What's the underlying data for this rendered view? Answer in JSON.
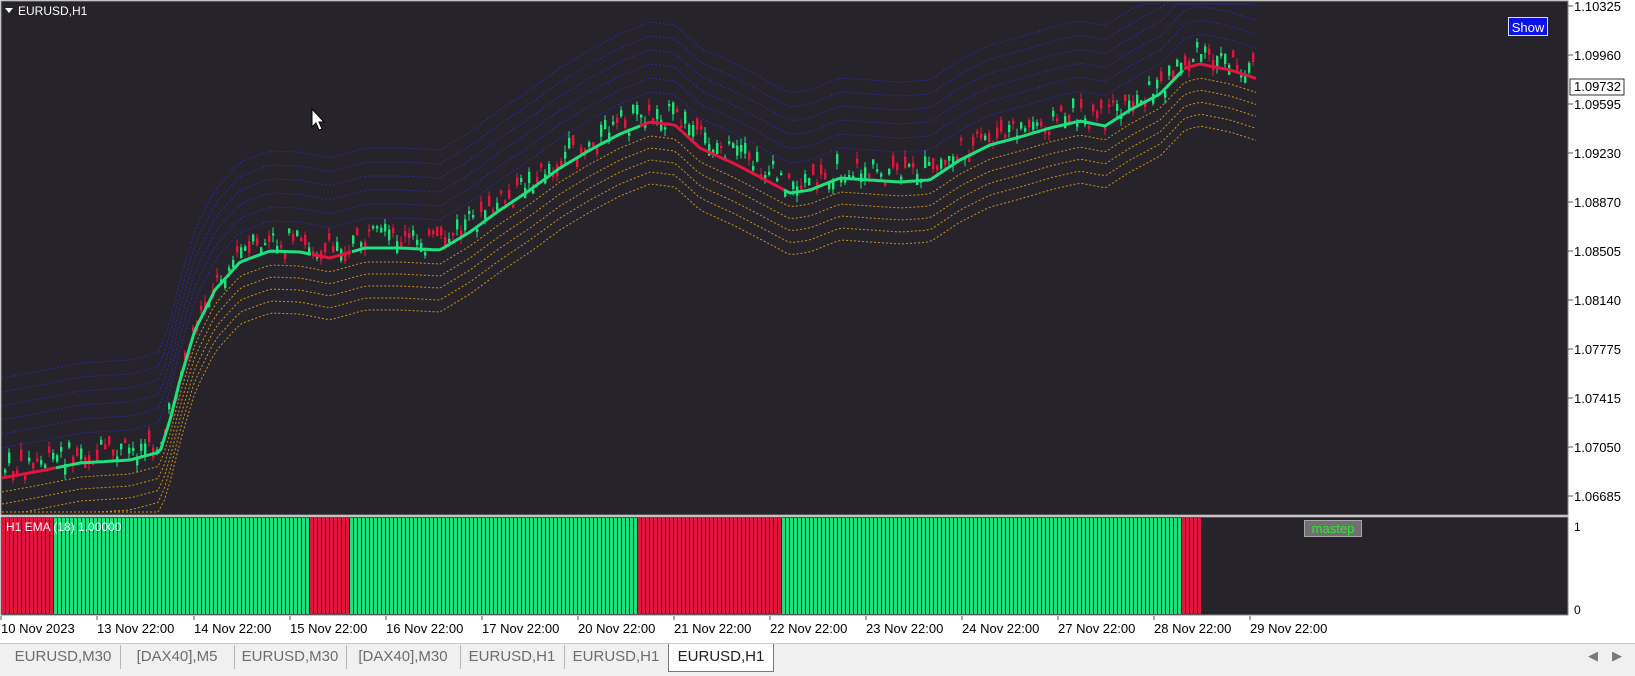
{
  "chart": {
    "title": "EURUSD,H1",
    "show_button": "Show",
    "current_price": "1.09732",
    "price_labels": [
      "1.10325",
      "1.09960",
      "1.09595",
      "1.09230",
      "1.08870",
      "1.08505",
      "1.08140",
      "1.07775",
      "1.07415",
      "1.07050",
      "1.06685"
    ],
    "indicator_label": "H1 EMA (18) 1.00000",
    "indicator_badge": "mastep",
    "indicator_scale": [
      "1",
      "0"
    ],
    "time_labels": [
      "10 Nov 2023",
      "13 Nov 22:00",
      "14 Nov 22:00",
      "15 Nov 22:00",
      "16 Nov 22:00",
      "17 Nov 22:00",
      "20 Nov 22:00",
      "21 Nov 22:00",
      "22 Nov 22:00",
      "23 Nov 22:00",
      "24 Nov 22:00",
      "27 Nov 22:00",
      "28 Nov 22:00",
      "29 Nov 22:00"
    ],
    "colors": {
      "background": "#27232b",
      "bullish": "#1ee07c",
      "bearish": "#e0163f",
      "upper_bands": "#2a2a9a",
      "lower_bands": "#c8901a",
      "text": "#ffffff"
    },
    "histogram_segments": [
      {
        "state": "bearish",
        "bars": 13
      },
      {
        "state": "bullish",
        "bars": 64
      },
      {
        "state": "bearish",
        "bars": 10
      },
      {
        "state": "bullish",
        "bars": 72
      },
      {
        "state": "bearish",
        "bars": 36
      },
      {
        "state": "bullish",
        "bars": 100
      },
      {
        "state": "bearish",
        "bars": 5
      }
    ]
  },
  "tabs": [
    {
      "label": "EURUSD,M30"
    },
    {
      "label": "[DAX40],M5"
    },
    {
      "label": "EURUSD,M30"
    },
    {
      "label": "[DAX40],M30"
    },
    {
      "label": "EURUSD,H1"
    },
    {
      "label": "EURUSD,H1"
    },
    {
      "label": "EURUSD,H1",
      "active": true
    }
  ],
  "tab_scroll": {
    "left": "◀",
    "right": "▶"
  }
}
